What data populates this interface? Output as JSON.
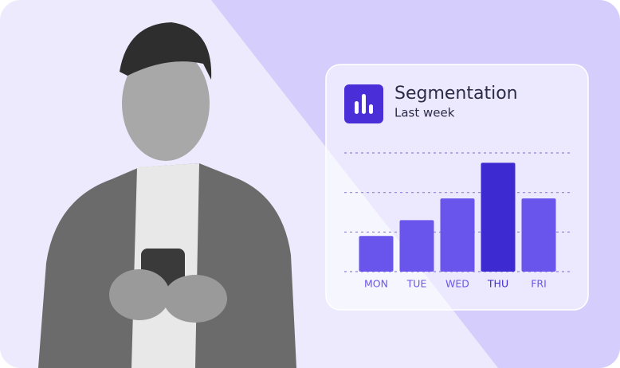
{
  "chart_data": {
    "type": "bar",
    "title": "Segmentation",
    "subtitle": "Last week",
    "categories": [
      "MON",
      "TUE",
      "WED",
      "THU",
      "FRI"
    ],
    "values": [
      0.9,
      1.3,
      1.85,
      2.75,
      1.85
    ],
    "colors": [
      "#6a55ec",
      "#6a55ec",
      "#6a55ec",
      "#3d2ad0",
      "#6a55ec"
    ],
    "ylim": [
      0,
      3
    ],
    "yticks": [
      0,
      1,
      2,
      3
    ],
    "grid": true
  }
}
